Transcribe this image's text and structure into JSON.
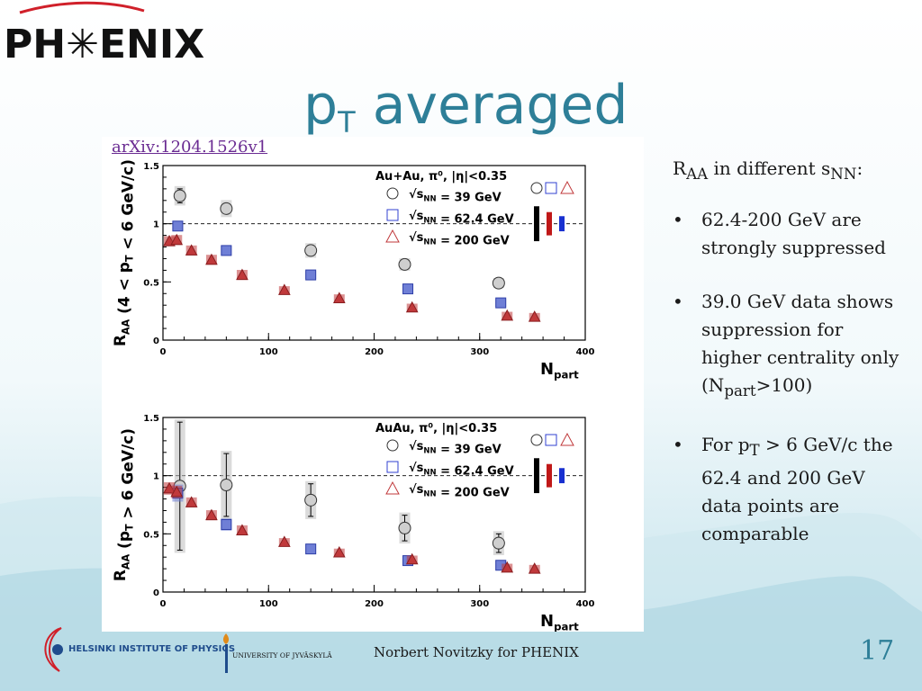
{
  "logo": {
    "text": "PH✳ENIX"
  },
  "slide": {
    "title_main": "p",
    "title_sub": "T",
    "title_rest": " averaged",
    "link": "arXiv:1204.1526v1",
    "page_number": "17",
    "footer": "Norbert Novitzky for PHENIX",
    "affil1": "HELSINKI INSTITUTE OF PHYSICS",
    "affil2": "UNIVERSITY OF JYVÄSKYLÄ"
  },
  "text_panel": {
    "heading_a": "R",
    "heading_a_sub": "AA",
    "heading_b": " in different s",
    "heading_b_sub": "NN",
    "heading_c": ":",
    "bullet1": "62.4-200 GeV are strongly suppressed",
    "bullet2_a": "39.0 GeV data shows suppression for higher centrality only (N",
    "bullet2_sub": "part",
    "bullet2_b": ">100)",
    "bullet3_a": "For p",
    "bullet3_sub": "T",
    "bullet3_b": " > 6 GeV/c the 62.4 and 200 GeV data points are comparable"
  },
  "colors": {
    "s39": "#bdbdbd",
    "s62": "#6f7fd6",
    "s200": "#c0393b",
    "title": "#2e7f98"
  },
  "chart_data": [
    {
      "type": "scatter",
      "title": "Au+Au, π⁰, |η|<0.35",
      "xlabel": "N_part",
      "ylabel": "R_AA (4 < p_T < 6 GeV/c)",
      "xlim": [
        0,
        400
      ],
      "ylim": [
        0,
        1.5
      ],
      "x_ticks": [
        "0",
        "100",
        "200",
        "300",
        "400"
      ],
      "y_ticks": [
        "0",
        "0.5",
        "1",
        "1.5"
      ],
      "reference_line": 1,
      "legend_position": "top-right",
      "series": [
        {
          "name": "√s_NN = 39 GeV",
          "marker": "circle",
          "x": [
            16,
            60,
            140,
            229,
            318
          ],
          "y": [
            1.24,
            1.13,
            0.77,
            0.65,
            0.49
          ],
          "err": [
            0.06,
            0.05,
            0.04,
            0.03,
            0.02
          ]
        },
        {
          "name": "√s_NN = 62.4 GeV",
          "marker": "square",
          "x": [
            14,
            60,
            140,
            232,
            320
          ],
          "y": [
            0.98,
            0.77,
            0.56,
            0.44,
            0.32
          ],
          "err": [
            0.02,
            0.02,
            0.01,
            0.01,
            0.01
          ]
        },
        {
          "name": "√s_NN = 200 GeV",
          "marker": "triangle",
          "x": [
            6,
            13,
            27,
            46,
            75,
            115,
            167,
            236,
            326,
            352
          ],
          "y": [
            0.85,
            0.86,
            0.77,
            0.69,
            0.56,
            0.43,
            0.36,
            0.28,
            0.21,
            0.2
          ],
          "err": [
            0.02,
            0.02,
            0.02,
            0.02,
            0.02,
            0.01,
            0.01,
            0.01,
            0.01,
            0.01
          ]
        }
      ]
    },
    {
      "type": "scatter",
      "title": "AuAu, π⁰, |η|<0.35",
      "xlabel": "N_part",
      "ylabel": "R_AA (p_T > 6 GeV/c)",
      "xlim": [
        0,
        400
      ],
      "ylim": [
        0,
        1.5
      ],
      "x_ticks": [
        "0",
        "100",
        "200",
        "300",
        "400"
      ],
      "y_ticks": [
        "0",
        "0.5",
        "1",
        "1.5"
      ],
      "reference_line": 1,
      "legend_position": "top-right",
      "series": [
        {
          "name": "√s_NN = 39 GeV",
          "marker": "circle",
          "x": [
            16,
            60,
            140,
            229,
            318
          ],
          "y": [
            0.91,
            0.92,
            0.79,
            0.55,
            0.42
          ],
          "err": [
            0.55,
            0.27,
            0.14,
            0.11,
            0.08
          ]
        },
        {
          "name": "√s_NN = 62.4 GeV",
          "marker": "square",
          "x": [
            14,
            60,
            140,
            232,
            320
          ],
          "y": [
            0.85,
            0.58,
            0.37,
            0.27,
            0.23
          ],
          "err": [
            0.05,
            0.03,
            0.02,
            0.02,
            0.02
          ]
        },
        {
          "name": "√s_NN = 200 GeV",
          "marker": "triangle",
          "x": [
            6,
            13,
            27,
            46,
            75,
            115,
            167,
            236,
            326,
            352
          ],
          "y": [
            0.89,
            0.86,
            0.77,
            0.66,
            0.53,
            0.43,
            0.34,
            0.28,
            0.21,
            0.2
          ],
          "err": [
            0.03,
            0.03,
            0.02,
            0.02,
            0.02,
            0.01,
            0.01,
            0.01,
            0.01,
            0.01
          ]
        }
      ]
    }
  ]
}
